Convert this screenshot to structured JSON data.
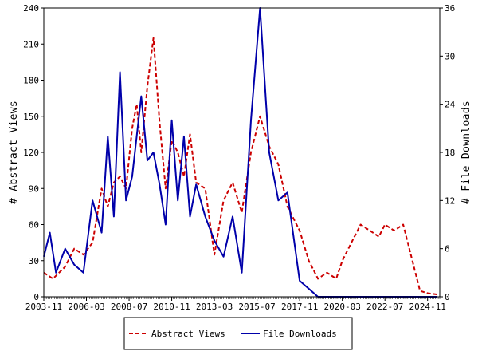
{
  "chart_data": {
    "type": "line",
    "x_ticks": [
      "2003-11",
      "2006-03",
      "2008-07",
      "2010-11",
      "2013-03",
      "2015-07",
      "2017-11",
      "2020-03",
      "2022-07",
      "2024-11"
    ],
    "left_axis": {
      "label": "# Abstract Views",
      "range": [
        0,
        240
      ],
      "ticks": [
        "0",
        "30",
        "60",
        "90",
        "120",
        "150",
        "180",
        "210",
        "240"
      ]
    },
    "right_axis": {
      "label": "# File Downloads",
      "range": [
        0,
        36
      ],
      "ticks": [
        "0",
        "6",
        "12",
        "18",
        "24",
        "30",
        "36"
      ]
    },
    "legend_position": "bottom",
    "series": [
      {
        "name": "Abstract Views",
        "axis": "left",
        "color": "#cc0000",
        "style": "dashed",
        "points": [
          [
            "2003-11",
            20
          ],
          [
            "2004-05",
            15
          ],
          [
            "2005-01",
            25
          ],
          [
            "2005-07",
            40
          ],
          [
            "2006-01",
            35
          ],
          [
            "2006-07",
            45
          ],
          [
            "2007-01",
            90
          ],
          [
            "2007-05",
            75
          ],
          [
            "2007-09",
            95
          ],
          [
            "2008-01",
            100
          ],
          [
            "2008-05",
            90
          ],
          [
            "2008-09",
            140
          ],
          [
            "2008-12",
            160
          ],
          [
            "2009-03",
            120
          ],
          [
            "2009-07",
            175
          ],
          [
            "2009-11",
            215
          ],
          [
            "2010-03",
            145
          ],
          [
            "2010-07",
            90
          ],
          [
            "2010-11",
            130
          ],
          [
            "2011-03",
            120
          ],
          [
            "2011-07",
            100
          ],
          [
            "2011-11",
            135
          ],
          [
            "2012-03",
            95
          ],
          [
            "2012-09",
            90
          ],
          [
            "2013-03",
            35
          ],
          [
            "2013-09",
            80
          ],
          [
            "2014-03",
            95
          ],
          [
            "2014-09",
            70
          ],
          [
            "2015-03",
            120
          ],
          [
            "2015-09",
            150
          ],
          [
            "2016-03",
            125
          ],
          [
            "2016-09",
            110
          ],
          [
            "2017-03",
            75
          ],
          [
            "2017-11",
            55
          ],
          [
            "2018-05",
            30
          ],
          [
            "2018-11",
            15
          ],
          [
            "2019-05",
            20
          ],
          [
            "2019-11",
            15
          ],
          [
            "2020-03",
            30
          ],
          [
            "2020-09",
            45
          ],
          [
            "2021-03",
            60
          ],
          [
            "2021-09",
            55
          ],
          [
            "2022-03",
            50
          ],
          [
            "2022-07",
            60
          ],
          [
            "2023-01",
            55
          ],
          [
            "2023-07",
            60
          ],
          [
            "2024-01",
            30
          ],
          [
            "2024-06",
            5
          ],
          [
            "2024-11",
            3
          ],
          [
            "2025-05",
            2
          ]
        ]
      },
      {
        "name": "File Downloads",
        "axis": "right",
        "color": "#0000aa",
        "style": "solid",
        "points": [
          [
            "2003-11",
            5
          ],
          [
            "2004-03",
            8
          ],
          [
            "2004-07",
            3
          ],
          [
            "2005-01",
            6
          ],
          [
            "2005-07",
            4
          ],
          [
            "2006-01",
            3
          ],
          [
            "2006-07",
            12
          ],
          [
            "2007-01",
            8
          ],
          [
            "2007-05",
            20
          ],
          [
            "2007-09",
            10
          ],
          [
            "2008-01",
            28
          ],
          [
            "2008-05",
            12
          ],
          [
            "2008-09",
            15
          ],
          [
            "2008-12",
            20
          ],
          [
            "2009-03",
            25
          ],
          [
            "2009-07",
            17
          ],
          [
            "2009-11",
            18
          ],
          [
            "2010-03",
            14
          ],
          [
            "2010-07",
            9
          ],
          [
            "2010-11",
            22
          ],
          [
            "2011-03",
            12
          ],
          [
            "2011-07",
            20
          ],
          [
            "2011-11",
            10
          ],
          [
            "2012-03",
            14
          ],
          [
            "2012-09",
            10
          ],
          [
            "2013-03",
            7
          ],
          [
            "2013-09",
            5
          ],
          [
            "2014-03",
            10
          ],
          [
            "2014-09",
            3
          ],
          [
            "2015-03",
            22
          ],
          [
            "2015-09",
            36
          ],
          [
            "2016-03",
            18
          ],
          [
            "2016-09",
            12
          ],
          [
            "2017-03",
            13
          ],
          [
            "2017-11",
            2
          ],
          [
            "2018-05",
            1
          ],
          [
            "2018-11",
            0
          ],
          [
            "2019-05",
            0
          ],
          [
            "2020-03",
            0
          ],
          [
            "2022-07",
            0
          ],
          [
            "2024-11",
            0
          ],
          [
            "2025-05",
            0
          ]
        ]
      }
    ]
  }
}
